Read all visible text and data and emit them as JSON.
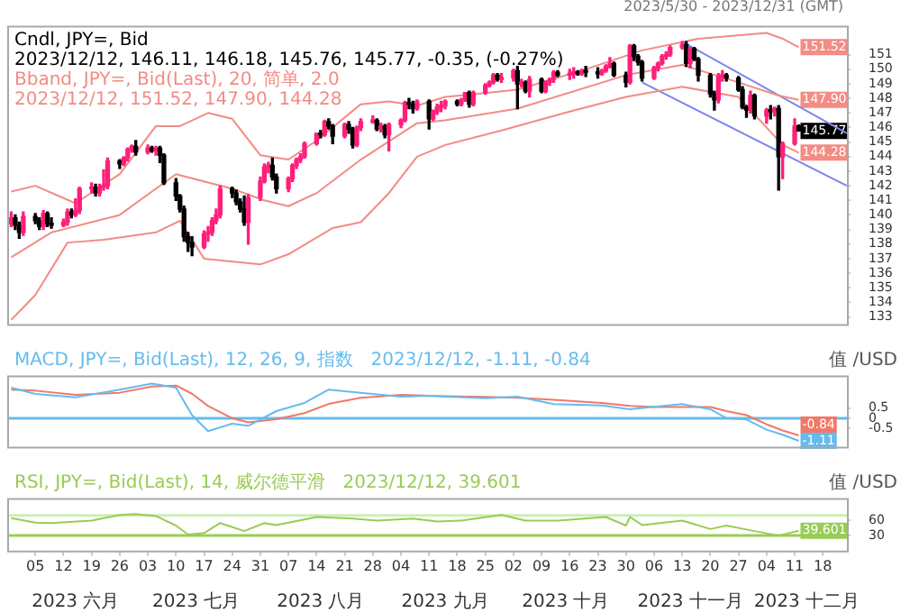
{
  "chart_data": [
    {
      "type": "candlestick",
      "title": "Cndl, JPY=, Bid",
      "subtitle": "2023/12/12, 146.11, 146.18, 145.76, 145.77, -0.35, (-0.27%)",
      "annotations": [
        "2023/5/30 - 2023/12/31 (GMT)",
        "Bband, JPY=, Bid(Last), 20, 简单, 2.0",
        "2023/12/12, 151.52, 147.90, 144.28",
        {
          "text": "151.52",
          "x": "2023-12-12",
          "y": 151.52
        },
        {
          "text": "147.90",
          "x": "2023-12-12",
          "y": 147.9
        },
        {
          "text": "145.77",
          "x": "2023-12-12",
          "y": 145.77
        },
        {
          "text": "144.28",
          "x": "2023-12-12",
          "y": 144.28
        }
      ],
      "xlim": [
        "2023-05-29",
        "2023-12-24"
      ],
      "ylim": [
        132.5,
        153
      ],
      "yticks": [
        133,
        134,
        135,
        136,
        137,
        138,
        139,
        140,
        141,
        142,
        143,
        144,
        145,
        146,
        147,
        148,
        149,
        150,
        151
      ],
      "tick_labels": "y",
      "grid": false,
      "legend": false,
      "marker": "none",
      "series": [
        {
          "colors": [
            "#ff1f7a",
            "#000000",
            "#000000",
            "#ff1f7a",
            "#000000",
            "#000000",
            "#ff1f7a",
            "#000000",
            "#000000",
            "#ff1f7a",
            "#ff1f7a",
            "#000000",
            "#ff1f7a",
            "#ff1f7a",
            "#ff1f7a",
            "#000000",
            "#ff1f7a",
            "#ff1f7a",
            "#ff1f7a",
            "#000000",
            "#ff1f7a",
            "#ff1f7a",
            "#ff1f7a",
            "#000000",
            "#ff1f7a",
            "#000000",
            "#ff1f7a",
            "#000000",
            "#000000",
            "#000000",
            "#000000",
            "#000000",
            "#000000",
            "#000000",
            "#ff1f7a",
            "#ff1f7a",
            "#ff1f7a",
            "#ff1f7a",
            "#ff1f7a",
            "#000000",
            "#000000",
            "#000000",
            "#000000",
            "#ff1f7a",
            "#ff1f7a",
            "#ff1f7a",
            "#ff1f7a",
            "#000000",
            "#000000",
            "#ff1f7a",
            "#ff1f7a",
            "#ff1f7a",
            "#ff1f7a",
            "#ff1f7a",
            "#ff1f7a",
            "#000000",
            "#ff1f7a",
            "#000000",
            "#000000",
            "#ff1f7a",
            "#000000",
            "#000000",
            "#ff1f7a",
            "#ff1f7a",
            "#ff1f7a",
            "#000000",
            "#ff1f7a",
            "#000000",
            "#ff1f7a",
            "#ff1f7a",
            "#ff1f7a",
            "#000000",
            "#000000",
            "#ff1f7a",
            "#000000",
            "#ff1f7a",
            "#ff1f7a",
            "#ff1f7a",
            "#ff1f7a",
            "#000000",
            "#ff1f7a",
            "#ff1f7a",
            "#000000",
            "#ff1f7a",
            "#ff1f7a",
            "#ff1f7a",
            "#ff1f7a",
            "#000000",
            "#ff1f7a",
            "#ff1f7a",
            "#000000",
            "#ff1f7a",
            "#000000",
            "#ff1f7a",
            "#000000",
            "#ff1f7a",
            "#ff1f7a",
            "#ff1f7a",
            "#000000",
            "#ff1f7a",
            "#ff1f7a",
            "#000000",
            "#ff1f7a",
            "#000000",
            "#000000",
            "#ff1f7a",
            "#ff1f7a",
            "#ff1f7a",
            "#000000",
            "#000000",
            "#ff1f7a",
            "#000000",
            "#000000",
            "#000000",
            "#ff1f7a",
            "#ff1f7a",
            "#ff1f7a",
            "#ff1f7a",
            "#ff1f7a",
            "#ff1f7a",
            "#000000",
            "#ff1f7a",
            "#000000",
            "#000000",
            "#000000",
            "#000000",
            "#ff1f7a",
            "#ff1f7a",
            "#000000",
            "#000000",
            "#000000",
            "#000000",
            "#ff1f7a",
            "#000000",
            "#ff1f7a",
            "#000000",
            "#ff1f7a",
            "#000000",
            "#ff1f7a",
            "#ff1f7a",
            "#000000"
          ],
          "x": [
            "2023-05-30",
            "2023-05-31",
            "2023-06-01",
            "2023-06-02",
            "2023-06-05",
            "2023-06-06",
            "2023-06-07",
            "2023-06-08",
            "2023-06-09",
            "2023-06-12",
            "2023-06-13",
            "2023-06-14",
            "2023-06-15",
            "2023-06-16",
            "2023-06-19",
            "2023-06-20",
            "2023-06-21",
            "2023-06-22",
            "2023-06-23",
            "2023-06-26",
            "2023-06-27",
            "2023-06-28",
            "2023-06-29",
            "2023-06-30",
            "2023-07-03",
            "2023-07-04",
            "2023-07-05",
            "2023-07-06",
            "2023-07-07",
            "2023-07-10",
            "2023-07-11",
            "2023-07-12",
            "2023-07-13",
            "2023-07-14",
            "2023-07-17",
            "2023-07-18",
            "2023-07-19",
            "2023-07-20",
            "2023-07-21",
            "2023-07-24",
            "2023-07-25",
            "2023-07-26",
            "2023-07-27",
            "2023-07-28",
            "2023-07-31",
            "2023-08-01",
            "2023-08-02",
            "2023-08-03",
            "2023-08-04",
            "2023-08-07",
            "2023-08-08",
            "2023-08-09",
            "2023-08-10",
            "2023-08-11",
            "2023-08-14",
            "2023-08-15",
            "2023-08-16",
            "2023-08-17",
            "2023-08-18",
            "2023-08-21",
            "2023-08-22",
            "2023-08-23",
            "2023-08-24",
            "2023-08-25",
            "2023-08-28",
            "2023-08-29",
            "2023-08-30",
            "2023-08-31",
            "2023-09-01",
            "2023-09-04",
            "2023-09-05",
            "2023-09-06",
            "2023-09-07",
            "2023-09-08",
            "2023-09-11",
            "2023-09-12",
            "2023-09-13",
            "2023-09-14",
            "2023-09-15",
            "2023-09-18",
            "2023-09-19",
            "2023-09-20",
            "2023-09-21",
            "2023-09-22",
            "2023-09-25",
            "2023-09-26",
            "2023-09-27",
            "2023-09-28",
            "2023-09-29",
            "2023-10-02",
            "2023-10-03",
            "2023-10-04",
            "2023-10-05",
            "2023-10-06",
            "2023-10-09",
            "2023-10-10",
            "2023-10-11",
            "2023-10-12",
            "2023-10-13",
            "2023-10-16",
            "2023-10-17",
            "2023-10-18",
            "2023-10-19",
            "2023-10-20",
            "2023-10-23",
            "2023-10-24",
            "2023-10-25",
            "2023-10-26",
            "2023-10-27",
            "2023-10-30",
            "2023-10-31",
            "2023-11-01",
            "2023-11-02",
            "2023-11-03",
            "2023-11-06",
            "2023-11-07",
            "2023-11-08",
            "2023-11-09",
            "2023-11-10",
            "2023-11-13",
            "2023-11-14",
            "2023-11-15",
            "2023-11-16",
            "2023-11-17",
            "2023-11-20",
            "2023-11-21",
            "2023-11-22",
            "2023-11-23",
            "2023-11-24",
            "2023-11-27",
            "2023-11-28",
            "2023-11-29",
            "2023-11-30",
            "2023-12-01",
            "2023-12-04",
            "2023-12-05",
            "2023-12-06",
            "2023-12-07",
            "2023-12-08",
            "2023-12-11",
            "2023-12-12"
          ],
          "ohlc": [
            [
              139.4,
              140.2,
              139.2,
              139.8
            ],
            [
              139.8,
              140.0,
              139.0,
              139.3
            ],
            [
              139.3,
              139.5,
              138.4,
              138.8
            ],
            [
              138.8,
              140.2,
              138.6,
              139.9
            ],
            [
              139.9,
              140.1,
              139.4,
              139.6
            ],
            [
              139.6,
              139.8,
              139.0,
              139.2
            ],
            [
              139.2,
              140.3,
              139.0,
              140.1
            ],
            [
              140.1,
              140.2,
              139.2,
              139.4
            ],
            [
              139.4,
              139.8,
              139.1,
              139.3
            ],
            [
              139.3,
              139.7,
              139.2,
              139.5
            ],
            [
              139.5,
              140.4,
              139.3,
              140.2
            ],
            [
              140.2,
              140.4,
              139.8,
              140.0
            ],
            [
              140.0,
              141.1,
              139.9,
              140.3
            ],
            [
              140.3,
              141.9,
              140.1,
              141.8
            ],
            [
              141.8,
              142.2,
              141.5,
              141.9
            ],
            [
              141.9,
              142.1,
              141.3,
              141.5
            ],
            [
              141.5,
              142.1,
              141.3,
              141.9
            ],
            [
              141.9,
              143.1,
              141.7,
              142.0
            ],
            [
              142.0,
              143.9,
              141.8,
              143.7
            ],
            [
              143.7,
              143.8,
              143.2,
              143.5
            ],
            [
              143.5,
              144.0,
              143.4,
              143.9
            ],
            [
              143.9,
              144.6,
              143.7,
              144.5
            ],
            [
              144.5,
              144.8,
              144.3,
              144.7
            ],
            [
              144.7,
              145.1,
              144.1,
              144.3
            ],
            [
              144.3,
              144.8,
              144.2,
              144.6
            ],
            [
              144.6,
              144.7,
              144.3,
              144.4
            ],
            [
              144.4,
              144.7,
              144.1,
              144.6
            ],
            [
              144.6,
              144.7,
              143.6,
              144.1
            ],
            [
              144.1,
              144.2,
              142.1,
              142.2
            ],
            [
              142.2,
              142.5,
              141.0,
              141.3
            ],
            [
              141.3,
              141.4,
              140.2,
              140.4
            ],
            [
              140.4,
              140.6,
              138.2,
              138.5
            ],
            [
              138.5,
              138.8,
              137.5,
              138.1
            ],
            [
              138.1,
              138.5,
              137.2,
              137.8
            ],
            [
              137.8,
              138.9,
              137.7,
              138.7
            ],
            [
              138.7,
              139.2,
              138.2,
              138.8
            ],
            [
              138.8,
              139.8,
              138.6,
              139.6
            ],
            [
              139.6,
              140.4,
              139.4,
              140.0
            ],
            [
              140.0,
              142.0,
              139.8,
              141.8
            ],
            [
              141.8,
              141.9,
              141.2,
              141.5
            ],
            [
              141.5,
              141.7,
              140.7,
              140.9
            ],
            [
              140.9,
              141.1,
              140.2,
              140.4
            ],
            [
              140.4,
              141.3,
              139.3,
              139.5
            ],
            [
              139.5,
              141.4,
              138.0,
              141.2
            ],
            [
              141.2,
              142.6,
              141.0,
              142.3
            ],
            [
              142.3,
              143.5,
              142.2,
              143.3
            ],
            [
              143.3,
              143.6,
              142.9,
              143.4
            ],
            [
              143.4,
              143.9,
              142.4,
              142.6
            ],
            [
              142.6,
              142.8,
              141.5,
              141.8
            ],
            [
              141.8,
              142.6,
              141.6,
              142.5
            ],
            [
              142.5,
              143.5,
              142.3,
              143.4
            ],
            [
              143.4,
              143.9,
              143.2,
              143.8
            ],
            [
              143.8,
              144.2,
              143.6,
              144.0
            ],
            [
              144.0,
              145.0,
              143.9,
              144.9
            ],
            [
              144.9,
              145.6,
              144.8,
              145.6
            ],
            [
              145.6,
              145.8,
              145.3,
              145.5
            ],
            [
              145.5,
              146.5,
              145.4,
              146.4
            ],
            [
              146.4,
              146.6,
              145.9,
              146.1
            ],
            [
              146.1,
              146.2,
              144.9,
              145.4
            ],
            [
              145.4,
              146.3,
              145.3,
              146.2
            ],
            [
              146.2,
              146.4,
              145.6,
              145.9
            ],
            [
              145.9,
              146.0,
              144.6,
              144.8
            ],
            [
              144.8,
              146.1,
              144.7,
              146.0
            ],
            [
              146.0,
              146.6,
              145.8,
              146.4
            ],
            [
              146.4,
              146.8,
              146.3,
              146.5
            ],
            [
              146.5,
              146.6,
              145.8,
              145.9
            ],
            [
              145.9,
              146.3,
              145.7,
              146.1
            ],
            [
              146.1,
              146.2,
              145.3,
              145.5
            ],
            [
              145.5,
              146.3,
              144.4,
              146.2
            ],
            [
              146.2,
              146.6,
              146.0,
              146.5
            ],
            [
              146.5,
              147.8,
              146.4,
              147.7
            ],
            [
              147.7,
              148.0,
              147.3,
              147.6
            ],
            [
              147.6,
              147.8,
              147.0,
              147.3
            ],
            [
              147.3,
              147.9,
              147.2,
              147.8
            ],
            [
              147.8,
              147.9,
              145.9,
              146.6
            ],
            [
              146.6,
              147.2,
              146.5,
              147.1
            ],
            [
              147.1,
              147.6,
              146.9,
              147.4
            ],
            [
              147.4,
              147.8,
              147.1,
              147.5
            ],
            [
              147.5,
              147.9,
              147.3,
              147.8
            ],
            [
              147.8,
              147.9,
              147.5,
              147.6
            ],
            [
              147.6,
              148.0,
              147.5,
              147.9
            ],
            [
              147.9,
              148.4,
              147.8,
              148.4
            ],
            [
              148.4,
              148.5,
              147.4,
              147.6
            ],
            [
              147.6,
              148.5,
              147.5,
              148.4
            ],
            [
              148.4,
              149.0,
              148.3,
              148.9
            ],
            [
              148.9,
              149.2,
              148.8,
              149.1
            ],
            [
              149.1,
              149.7,
              149.0,
              149.6
            ],
            [
              149.6,
              149.7,
              149.2,
              149.3
            ],
            [
              149.3,
              149.7,
              149.1,
              149.4
            ],
            [
              149.4,
              150.0,
              149.2,
              149.9
            ],
            [
              149.9,
              150.2,
              147.3,
              149.0
            ],
            [
              149.0,
              149.3,
              148.8,
              149.1
            ],
            [
              149.1,
              149.2,
              148.4,
              148.5
            ],
            [
              148.5,
              149.5,
              148.1,
              149.3
            ],
            [
              149.3,
              149.4,
              148.4,
              148.5
            ],
            [
              148.5,
              149.2,
              148.4,
              149.1
            ],
            [
              149.1,
              149.4,
              148.9,
              149.3
            ],
            [
              149.3,
              149.9,
              149.1,
              149.8
            ],
            [
              149.8,
              149.9,
              149.5,
              149.6
            ],
            [
              149.6,
              150.0,
              149.3,
              149.7
            ],
            [
              149.7,
              150.1,
              149.4,
              149.8
            ],
            [
              149.8,
              149.9,
              149.6,
              149.7
            ],
            [
              149.7,
              150.0,
              149.6,
              149.9
            ],
            [
              149.9,
              150.2,
              149.5,
              149.8
            ],
            [
              149.8,
              150.1,
              149.4,
              149.7
            ],
            [
              149.7,
              150.0,
              149.6,
              149.9
            ],
            [
              149.9,
              150.3,
              149.8,
              150.2
            ],
            [
              150.2,
              150.8,
              150.1,
              150.4
            ],
            [
              150.4,
              150.5,
              149.5,
              149.6
            ],
            [
              149.6,
              149.8,
              148.8,
              149.1
            ],
            [
              149.1,
              151.7,
              149.0,
              151.6
            ],
            [
              151.6,
              151.7,
              150.6,
              150.9
            ],
            [
              150.9,
              151.0,
              150.3,
              150.5
            ],
            [
              150.5,
              150.6,
              149.2,
              149.4
            ],
            [
              149.4,
              150.2,
              149.3,
              150.1
            ],
            [
              150.1,
              150.5,
              149.9,
              150.4
            ],
            [
              150.4,
              151.0,
              150.3,
              150.9
            ],
            [
              150.9,
              151.2,
              150.7,
              151.0
            ],
            [
              151.0,
              151.6,
              150.9,
              151.5
            ],
            [
              151.5,
              151.9,
              151.4,
              151.7
            ],
            [
              151.7,
              151.9,
              150.2,
              150.4
            ],
            [
              150.4,
              151.5,
              150.1,
              151.4
            ],
            [
              151.4,
              151.5,
              150.6,
              150.7
            ],
            [
              150.7,
              150.8,
              149.2,
              149.6
            ],
            [
              149.6,
              149.7,
              148.1,
              148.3
            ],
            [
              148.3,
              148.5,
              147.2,
              147.9
            ],
            [
              147.9,
              149.7,
              147.7,
              149.5
            ],
            [
              149.5,
              149.9,
              149.2,
              149.6
            ],
            [
              149.6,
              149.7,
              149.2,
              149.4
            ],
            [
              149.4,
              149.5,
              148.5,
              148.6
            ],
            [
              148.6,
              148.8,
              147.3,
              147.4
            ],
            [
              147.4,
              147.5,
              146.7,
              147.2
            ],
            [
              147.2,
              148.5,
              147.0,
              148.2
            ],
            [
              148.2,
              148.3,
              146.6,
              146.8
            ],
            [
              146.8,
              147.3,
              146.3,
              147.2
            ],
            [
              147.2,
              147.5,
              146.6,
              147.1
            ],
            [
              147.1,
              147.4,
              146.8,
              147.3
            ],
            [
              147.3,
              147.5,
              141.7,
              144.0
            ],
            [
              144.0,
              145.0,
              142.5,
              144.9
            ],
            [
              144.9,
              146.6,
              144.8,
              146.1
            ],
            [
              146.11,
              146.18,
              145.76,
              145.77
            ]
          ]
        },
        {
          "type": "line",
          "color": "#f28c84",
          "x": [
            "2023-05-30",
            "2023-06-05",
            "2023-06-15",
            "2023-06-26",
            "2023-07-05",
            "2023-07-11",
            "2023-07-18",
            "2023-07-24",
            "2023-07-31",
            "2023-08-07",
            "2023-08-14",
            "2023-08-25",
            "2023-09-01",
            "2023-09-08",
            "2023-09-15",
            "2023-10-03",
            "2023-10-20",
            "2023-11-03",
            "2023-11-17",
            "2023-12-04",
            "2023-12-08",
            "2023-12-12"
          ],
          "values": [
            141.6,
            142.0,
            140.8,
            142.8,
            146.1,
            146.1,
            147.0,
            146.6,
            144.1,
            143.8,
            145.1,
            147.6,
            147.8,
            147.5,
            148.1,
            148.6,
            150.0,
            151.3,
            152.1,
            152.5,
            152.1,
            151.52
          ]
        },
        {
          "type": "line",
          "color": "#f28c84",
          "x": [
            "2023-05-30",
            "2023-06-09",
            "2023-06-26",
            "2023-07-10",
            "2023-07-24",
            "2023-08-01",
            "2023-08-07",
            "2023-08-14",
            "2023-08-25",
            "2023-09-08",
            "2023-09-15",
            "2023-10-03",
            "2023-10-30",
            "2023-11-13",
            "2023-11-27",
            "2023-12-07",
            "2023-12-12"
          ],
          "values": [
            137.1,
            138.8,
            140.0,
            142.8,
            141.8,
            141.0,
            140.6,
            141.5,
            143.8,
            146.3,
            146.5,
            147.3,
            149.6,
            150.3,
            149.1,
            148.2,
            147.9
          ]
        },
        {
          "type": "line",
          "color": "#f28c84",
          "x": [
            "2023-05-30",
            "2023-06-05",
            "2023-06-13",
            "2023-06-22",
            "2023-07-05",
            "2023-07-11",
            "2023-07-17",
            "2023-07-31",
            "2023-08-07",
            "2023-08-18",
            "2023-08-25",
            "2023-09-01",
            "2023-09-08",
            "2023-09-15",
            "2023-09-29",
            "2023-10-16",
            "2023-10-30",
            "2023-11-13",
            "2023-11-27",
            "2023-12-08",
            "2023-12-12"
          ],
          "values": [
            132.8,
            134.5,
            138.1,
            138.3,
            138.8,
            139.6,
            137.0,
            136.6,
            137.3,
            139.1,
            139.5,
            141.5,
            144.0,
            144.8,
            145.8,
            147.1,
            148.1,
            148.8,
            148.1,
            144.8,
            144.28
          ]
        },
        {
          "type": "line",
          "color": "#7b86ee",
          "x": [
            "2023-11-13",
            "2023-12-24"
          ],
          "values": [
            151.9,
            145.6
          ]
        },
        {
          "type": "line",
          "color": "#7b86ee",
          "x": [
            "2023-11-03",
            "2023-12-24"
          ],
          "values": [
            149.1,
            142.0
          ]
        }
      ]
    },
    {
      "type": "line",
      "title": "MACD, JPY=, Bid(Last), 12, 26, 9, 指数",
      "subtitle": "2023/12/12, -1.11, -0.84",
      "ylabel": "值 /USD",
      "annotations": [
        {
          "text": "-0.84",
          "x": "2023-12-12",
          "y": -0.84
        },
        {
          "text": "-1.11",
          "x": "2023-12-12",
          "y": -1.11
        }
      ],
      "xlim": [
        "2023-05-29",
        "2023-12-24"
      ],
      "ylim": [
        -1.4,
        2.1
      ],
      "yticks": [
        -0.5,
        0,
        0.5
      ],
      "tick_labels": "y",
      "grid": false,
      "legend": false,
      "marker": "none",
      "ref_lines": [
        {
          "axis": "y",
          "value": 0,
          "color": "#66bbee"
        }
      ],
      "x": [
        "2023-05-30",
        "2023-06-05",
        "2023-06-15",
        "2023-06-26",
        "2023-07-04",
        "2023-07-10",
        "2023-07-14",
        "2023-07-18",
        "2023-07-24",
        "2023-07-28",
        "2023-08-04",
        "2023-08-11",
        "2023-08-17",
        "2023-08-25",
        "2023-09-04",
        "2023-09-11",
        "2023-09-15",
        "2023-09-25",
        "2023-10-03",
        "2023-10-12",
        "2023-10-24",
        "2023-10-31",
        "2023-11-06",
        "2023-11-13",
        "2023-11-20",
        "2023-11-24",
        "2023-11-29",
        "2023-12-04",
        "2023-12-08",
        "2023-12-12"
      ],
      "series": [
        {
          "color": "#66bbee",
          "values": [
            1.5,
            1.19,
            1.02,
            1.4,
            1.7,
            1.5,
            0.15,
            -0.63,
            -0.27,
            -0.37,
            0.35,
            0.75,
            1.4,
            1.25,
            1.06,
            1.1,
            1.06,
            0.98,
            1.06,
            0.69,
            0.63,
            0.44,
            0.56,
            0.69,
            0.44,
            0.0,
            -0.06,
            -0.56,
            -0.81,
            -1.11
          ]
        },
        {
          "color": "#f07868",
          "values": [
            1.4,
            1.35,
            1.15,
            1.25,
            1.55,
            1.6,
            1.2,
            0.6,
            0.0,
            -0.2,
            -0.05,
            0.25,
            0.7,
            1.0,
            1.15,
            1.1,
            1.08,
            1.05,
            1.0,
            0.9,
            0.75,
            0.6,
            0.55,
            0.55,
            0.55,
            0.35,
            0.15,
            -0.3,
            -0.6,
            -0.84
          ]
        }
      ]
    },
    {
      "type": "line",
      "title": "RSI, JPY=, Bid(Last), 14, 威尔德平滑",
      "subtitle": "2023/12/12, 39.601",
      "ylabel": "值 /USD",
      "annotations": [
        {
          "text": "39.601",
          "x": "2023-12-12",
          "y": 39.601
        }
      ],
      "xlim": [
        "2023-05-29",
        "2023-12-24"
      ],
      "xticks": [
        {
          "value": "2023-06-05",
          "label": "05"
        },
        {
          "value": "2023-06-12",
          "label": "12"
        },
        {
          "value": "2023-06-19",
          "label": "19"
        },
        {
          "value": "2023-06-26",
          "label": "26"
        },
        {
          "value": "2023-07-03",
          "label": "03"
        },
        {
          "value": "2023-07-10",
          "label": "10"
        },
        {
          "value": "2023-07-17",
          "label": "17"
        },
        {
          "value": "2023-07-24",
          "label": "24"
        },
        {
          "value": "2023-07-31",
          "label": "31"
        },
        {
          "value": "2023-08-07",
          "label": "07"
        },
        {
          "value": "2023-08-14",
          "label": "14"
        },
        {
          "value": "2023-08-21",
          "label": "21"
        },
        {
          "value": "2023-08-28",
          "label": "28"
        },
        {
          "value": "2023-09-04",
          "label": "04"
        },
        {
          "value": "2023-09-11",
          "label": "11"
        },
        {
          "value": "2023-09-18",
          "label": "18"
        },
        {
          "value": "2023-09-25",
          "label": "25"
        },
        {
          "value": "2023-10-02",
          "label": "02"
        },
        {
          "value": "2023-10-09",
          "label": "09"
        },
        {
          "value": "2023-10-16",
          "label": "16"
        },
        {
          "value": "2023-10-23",
          "label": "23"
        },
        {
          "value": "2023-10-30",
          "label": "30"
        },
        {
          "value": "2023-11-06",
          "label": "06"
        },
        {
          "value": "2023-11-13",
          "label": "13"
        },
        {
          "value": "2023-11-20",
          "label": "20"
        },
        {
          "value": "2023-11-27",
          "label": "27"
        },
        {
          "value": "2023-12-04",
          "label": "04"
        },
        {
          "value": "2023-12-11",
          "label": "11"
        },
        {
          "value": "2023-12-18",
          "label": "18"
        }
      ],
      "x2lim": [
        "2023-05-29",
        "2023-12-24"
      ],
      "x2ticks": [
        {
          "value": "2023-06-15",
          "label": "2023 六月"
        },
        {
          "value": "2023-07-15",
          "label": "2023 七月"
        },
        {
          "value": "2023-08-15",
          "label": "2023 八月"
        },
        {
          "value": "2023-09-15",
          "label": "2023 九月"
        },
        {
          "value": "2023-10-15",
          "label": "2023 十月"
        },
        {
          "value": "2023-11-15",
          "label": "2023 十一月"
        },
        {
          "value": "2023-12-14",
          "label": "2023 十二月"
        }
      ],
      "ylim": [
        0,
        105
      ],
      "yticks": [
        30,
        60
      ],
      "grid": false,
      "legend": false,
      "marker": "none",
      "ref_lines": [
        {
          "axis": "y",
          "value": 70,
          "color": "#cdeebb"
        },
        {
          "axis": "y",
          "value": 30,
          "color": "#99cc55"
        }
      ],
      "series": [
        {
          "color": "#99cc55",
          "x": [
            "2023-05-30",
            "2023-06-05",
            "2023-06-09",
            "2023-06-19",
            "2023-06-26",
            "2023-06-30",
            "2023-07-05",
            "2023-07-10",
            "2023-07-13",
            "2023-07-17",
            "2023-07-21",
            "2023-07-27",
            "2023-08-01",
            "2023-08-04",
            "2023-08-14",
            "2023-08-23",
            "2023-08-29",
            "2023-09-07",
            "2023-09-13",
            "2023-09-19",
            "2023-09-29",
            "2023-10-05",
            "2023-10-13",
            "2023-10-25",
            "2023-10-30",
            "2023-10-31",
            "2023-11-03",
            "2023-11-13",
            "2023-11-20",
            "2023-11-24",
            "2023-12-01",
            "2023-12-07",
            "2023-12-12"
          ],
          "values": [
            65,
            56,
            55,
            60,
            71,
            73,
            69,
            50,
            32,
            35,
            55,
            39,
            55,
            51,
            67,
            64,
            60,
            64,
            58,
            60,
            71,
            60,
            60,
            67,
            50,
            67,
            51,
            60,
            43,
            50,
            39,
            30,
            39.601
          ]
        }
      ]
    }
  ]
}
